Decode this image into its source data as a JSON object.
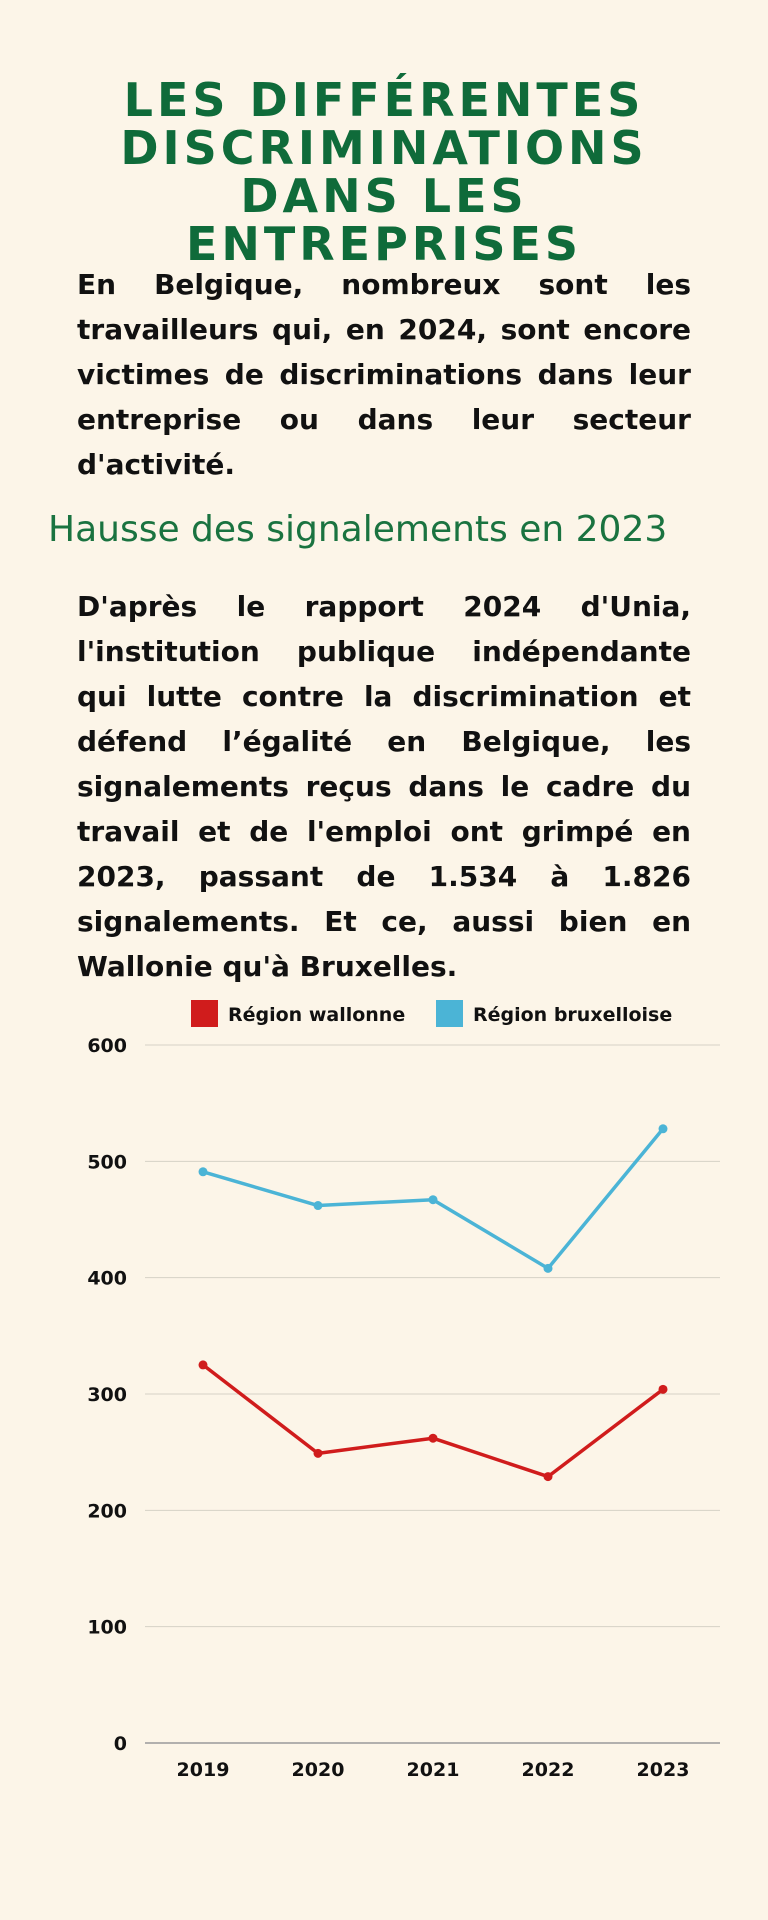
{
  "header": {
    "title": "Les différentes discriminations dans les entreprises",
    "intro": "En Belgique, nombreux sont les travailleurs qui, en 2024, sont encore victimes de discriminations dans leur entreprise ou dans leur secteur d'activité."
  },
  "section": {
    "subtitle": "Hausse des signalements en 2023",
    "body": "D'après le rapport 2024 d'Unia, l'institution publique indépendante qui lutte contre la discrimination et défend l’égalité en Belgique, les signalements reçus dans le cadre du travail et de l'emploi ont grimpé en 2023, passant de 1.534 à 1.826 signalements. Et ce, aussi bien en Wallonie qu'à Bruxelles."
  },
  "chart_data": {
    "type": "line",
    "x": [
      "2019",
      "2020",
      "2021",
      "2022",
      "2023"
    ],
    "series": [
      {
        "name": "Région wallonne",
        "color": "#d01c1c",
        "values": [
          325,
          249,
          262,
          229,
          304
        ]
      },
      {
        "name": "Région bruxelloise",
        "color": "#4bb4d6",
        "values": [
          491,
          462,
          467,
          408,
          528
        ]
      }
    ],
    "ylim": [
      0,
      600
    ],
    "yticks": [
      0,
      100,
      200,
      300,
      400,
      500,
      600
    ],
    "grid": true,
    "legend": "top"
  }
}
